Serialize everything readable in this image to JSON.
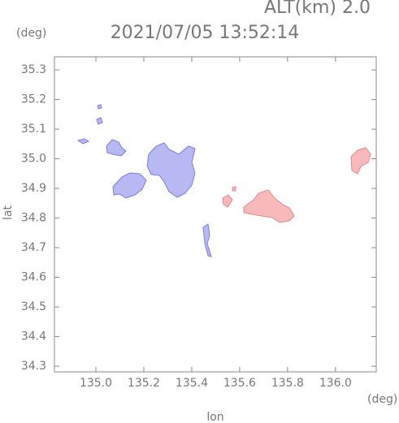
{
  "chart_data": {
    "type": "map",
    "title": "2021/07/05 13:52:14",
    "subtitle": "ALT(km)  2.0",
    "x_label": "lon",
    "y_label": "lat",
    "x_unit": "(deg)",
    "y_unit": "(deg)",
    "xlim": [
      134.827,
      136.17
    ],
    "ylim": [
      34.281,
      35.344
    ],
    "xticks": [
      {
        "value": 135,
        "label": "135.0"
      },
      135.2,
      135.4,
      135.6,
      135.8,
      {
        "value": 136,
        "label": "136.0"
      }
    ],
    "yticks": [
      34.3,
      34.4,
      34.5,
      34.6,
      34.7,
      34.8,
      34.9,
      {
        "value": 35,
        "label": "35.0"
      },
      35.1,
      35.2,
      35.3
    ]
  }
}
